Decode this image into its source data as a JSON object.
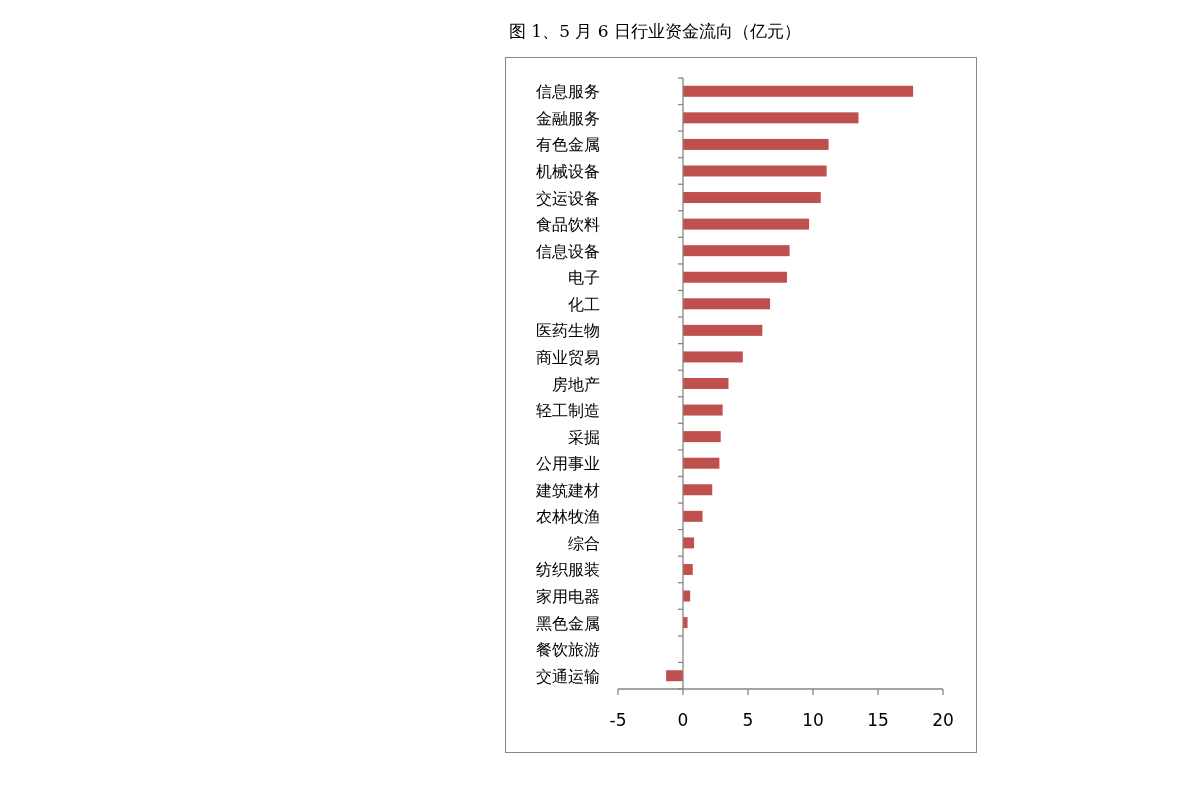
{
  "chart_data": {
    "type": "bar",
    "orientation": "horizontal",
    "title": "图 1、5 月 6 日行业资金流向（亿元）",
    "categories": [
      "信息服务",
      "金融服务",
      "有色金属",
      "机械设备",
      "交运设备",
      "食品饮料",
      "信息设备",
      "电子",
      "化工",
      "医药生物",
      "商业贸易",
      "房地产",
      "轻工制造",
      "采掘",
      "公用事业",
      "建筑建材",
      "农林牧渔",
      "综合",
      "纺织服装",
      "家用电器",
      "黑色金属",
      "餐饮旅游",
      "交通运输"
    ],
    "values": [
      17.7,
      13.5,
      11.2,
      11.05,
      10.6,
      9.7,
      8.2,
      8.0,
      6.7,
      6.1,
      4.6,
      3.5,
      3.05,
      2.9,
      2.8,
      2.25,
      1.5,
      0.85,
      0.75,
      0.55,
      0.35,
      0,
      -1.3
    ],
    "color": "#c0504d",
    "xlim": [
      -5,
      20
    ],
    "xticks": [
      -5,
      0,
      5,
      10,
      15,
      20
    ]
  }
}
